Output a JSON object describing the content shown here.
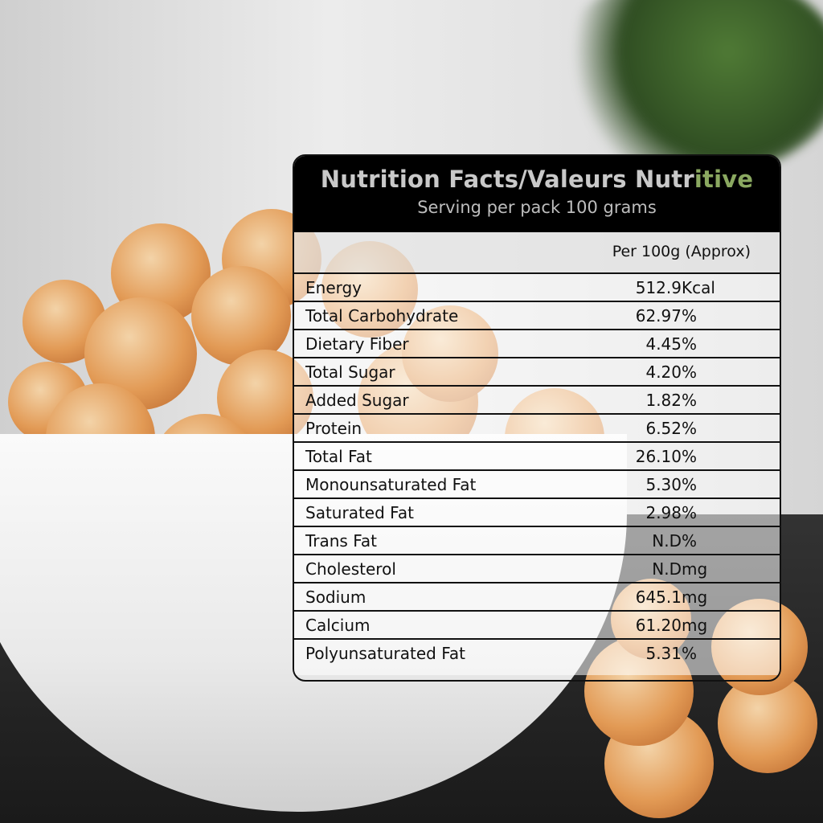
{
  "panel": {
    "title_main": "Nutrition Facts/Valeurs Nutr",
    "title_accent": "itive",
    "serving": "Serving per pack 100 grams",
    "column_header": "Per 100g (Approx)",
    "rows": [
      {
        "label": "Energy",
        "value": "512.9",
        "unit": "Kcal"
      },
      {
        "label": "Total Carbohydrate",
        "value": "62.97",
        "unit": "%"
      },
      {
        "label": "Dietary Fiber",
        "value": "4.45",
        "unit": "%"
      },
      {
        "label": "Total Sugar",
        "value": "4.20",
        "unit": "%"
      },
      {
        "label": "Added Sugar",
        "value": "1.82",
        "unit": "%"
      },
      {
        "label": "Protein",
        "value": "6.52",
        "unit": "%"
      },
      {
        "label": "Total Fat",
        "value": "26.10",
        "unit": "%"
      },
      {
        "label": "Monounsaturated Fat",
        "value": "5.30",
        "unit": "%"
      },
      {
        "label": "Saturated Fat",
        "value": "2.98",
        "unit": "%"
      },
      {
        "label": "Trans Fat",
        "value": "N.D",
        "unit": "%"
      },
      {
        "label": "Cholesterol",
        "value": "N.D",
        "unit": "mg"
      },
      {
        "label": "Sodium",
        "value": "645.1",
        "unit": "mg"
      },
      {
        "label": "Calcium",
        "value": "61.20",
        "unit": "mg"
      },
      {
        "label": "Polyunsaturated Fat",
        "value": "5.31",
        "unit": "%"
      }
    ]
  },
  "colors": {
    "header_bg": "#000000",
    "accent": "#8aa860",
    "snack": "#e29a55"
  }
}
